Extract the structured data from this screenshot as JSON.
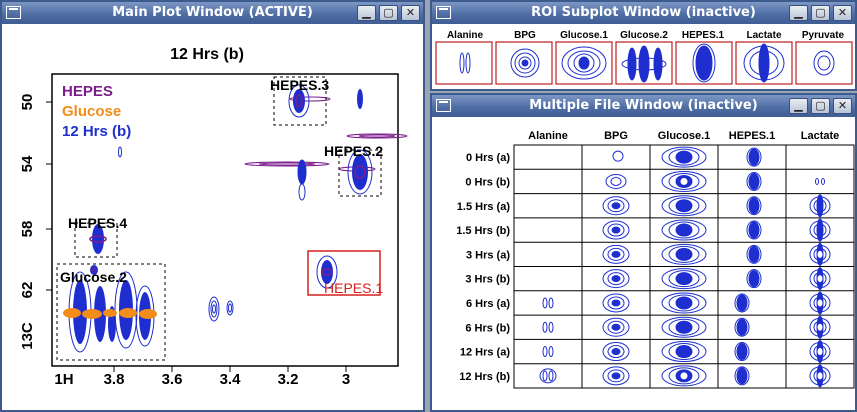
{
  "main_window": {
    "title": "Main Plot Window (ACTIVE)",
    "plot_title": "12 Hrs (b)",
    "legend": [
      {
        "label": "HEPES",
        "color": "#7b1e8c"
      },
      {
        "label": "Glucose",
        "color": "#f28c1a"
      },
      {
        "label": "12 Hrs (b)",
        "color": "#1f2fcf"
      }
    ],
    "y_axis_label": "13C",
    "x_axis_label": "1H",
    "y_ticks": [
      "50",
      "54",
      "58",
      "62"
    ],
    "x_ticks": [
      "3.8",
      "3.6",
      "3.4",
      "3.2",
      "3"
    ],
    "annotations": {
      "hepes3": "HEPES.3",
      "hepes2": "HEPES.2",
      "hepes4": "HEPES.4",
      "glucose2": "Glucose.2",
      "hepes1": "HEPES.1"
    }
  },
  "roi_window": {
    "title": "ROI Subplot Window (inactive)",
    "panels": [
      "Alanine",
      "BPG",
      "Glucose.1",
      "Glucose.2",
      "HEPES.1",
      "Lactate",
      "Pyruvate"
    ]
  },
  "multi_window": {
    "title": "Multiple File Window (inactive)",
    "columns": [
      "Alanine",
      "BPG",
      "Glucose.1",
      "HEPES.1",
      "Lactate"
    ],
    "rows": [
      "0 Hrs (a)",
      "0 Hrs (b)",
      "1.5 Hrs (a)",
      "1.5 Hrs (b)",
      "3 Hrs (a)",
      "3 Hrs (b)",
      "6 Hrs (a)",
      "6 Hrs (b)",
      "12 Hrs (a)",
      "12 Hrs (b)"
    ]
  },
  "colors": {
    "hepes": "#7b1e8c",
    "glucose": "#f28c1a",
    "sample": "#1f2fcf",
    "roi_highlight": "#d42020"
  }
}
